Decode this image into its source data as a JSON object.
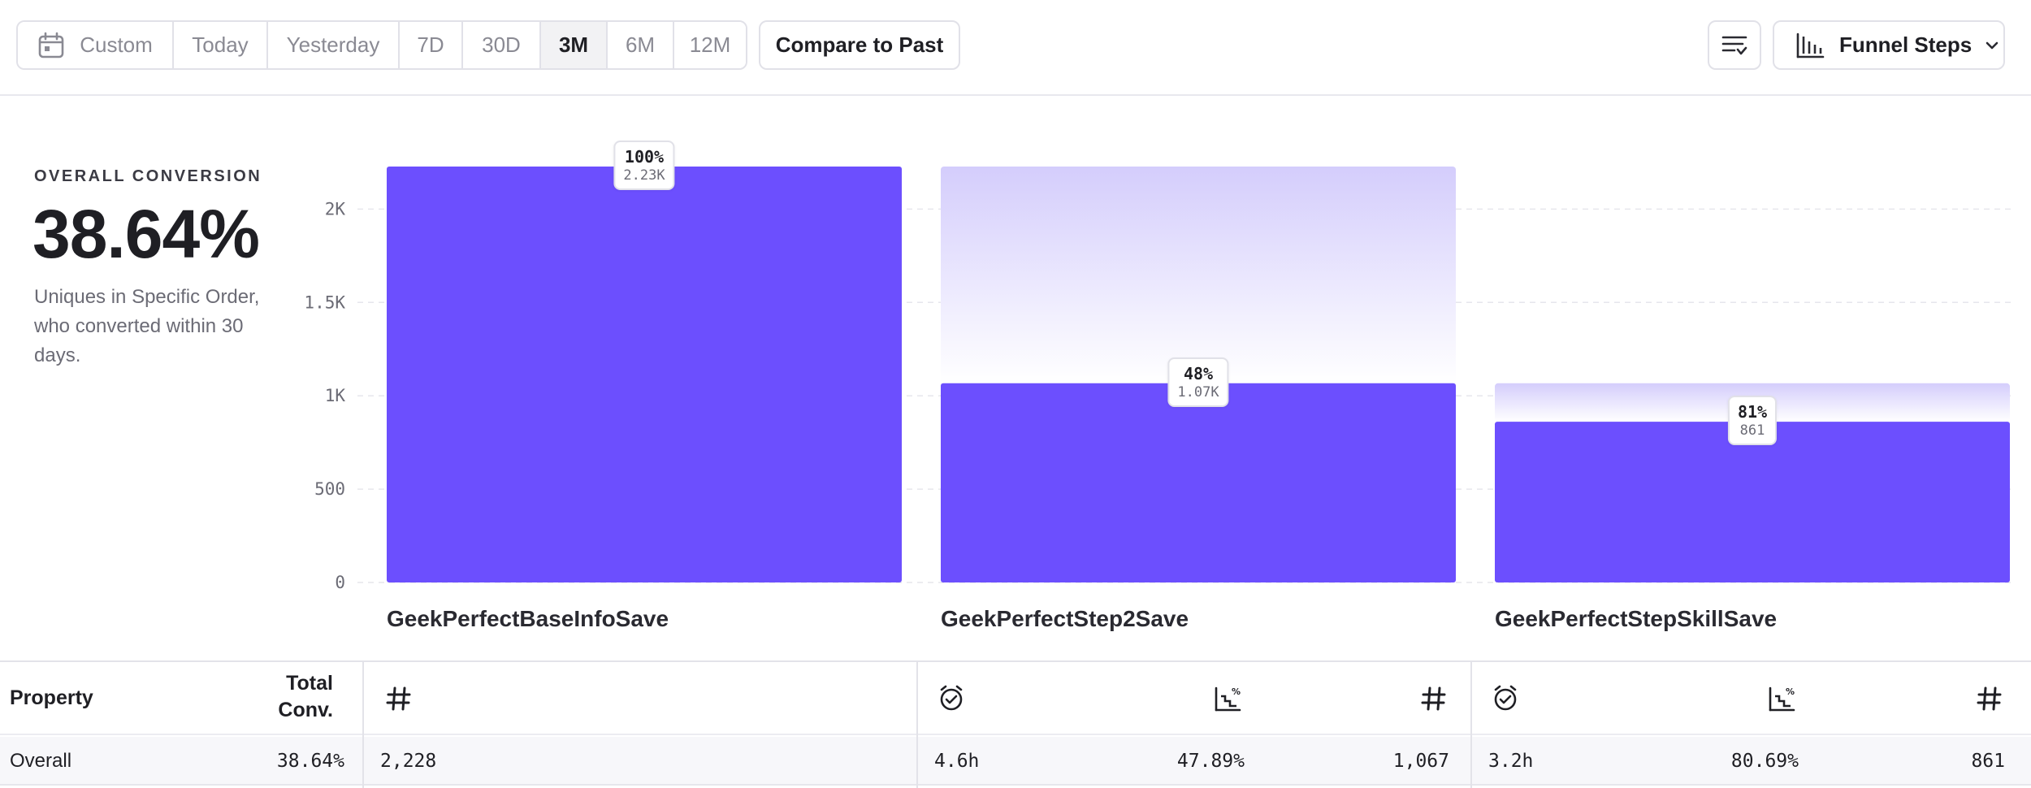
{
  "toolbar": {
    "date_ranges": [
      {
        "label": "Custom",
        "icon": "calendar-icon",
        "active": false
      },
      {
        "label": "Today",
        "active": false
      },
      {
        "label": "Yesterday",
        "active": false
      },
      {
        "label": "7D",
        "active": false
      },
      {
        "label": "30D",
        "active": false
      },
      {
        "label": "3M",
        "active": true
      },
      {
        "label": "6M",
        "active": false
      },
      {
        "label": "12M",
        "active": false
      }
    ],
    "compare_label": "Compare to Past",
    "sort_icon": "sort-options-icon",
    "view_label": "Funnel Steps",
    "view_icon": "bar-chart-icon"
  },
  "summary": {
    "label": "OVERALL CONVERSION",
    "value": "38.64%",
    "description": "Uniques in Specific Order, who converted within 30 days."
  },
  "chart_data": {
    "type": "bar",
    "title": "",
    "xlabel": "",
    "ylabel": "",
    "ylim": [
      0,
      2228
    ],
    "yticks": [
      0,
      500,
      1000,
      1500,
      2000
    ],
    "ytick_labels": [
      "0",
      "500",
      "1K",
      "1.5K",
      "2K"
    ],
    "grid": true,
    "bar_color": "#6c4ffe",
    "dropoff_color": "#d4cdfc",
    "categories": [
      "GeekPerfectBaseInfoSave",
      "GeekPerfectStep2Save",
      "GeekPerfectStepSkillSave"
    ],
    "series": [
      {
        "values": [
          2228,
          1067,
          861
        ]
      }
    ],
    "previous_step_values": [
      null,
      2228,
      1067
    ],
    "data_labels": [
      {
        "percent": "100%",
        "count": "2.23K"
      },
      {
        "percent": "48%",
        "count": "1.07K"
      },
      {
        "percent": "81%",
        "count": "861"
      }
    ]
  },
  "table": {
    "headers": {
      "property": "Property",
      "total_conv": "Total Conv."
    },
    "header_icons": [
      "hash-icon",
      "time-to-convert-icon",
      "conversion-rate-icon",
      "hash-icon",
      "time-to-convert-icon",
      "conversion-rate-icon",
      "hash-icon"
    ],
    "rows": [
      {
        "property": "Overall",
        "total_conv": "38.64%",
        "step1_count": "2,228",
        "step2_time": "4.6h",
        "step2_rate": "47.89%",
        "step2_count": "1,067",
        "step3_time": "3.2h",
        "step3_rate": "80.69%",
        "step3_count": "861"
      }
    ]
  }
}
